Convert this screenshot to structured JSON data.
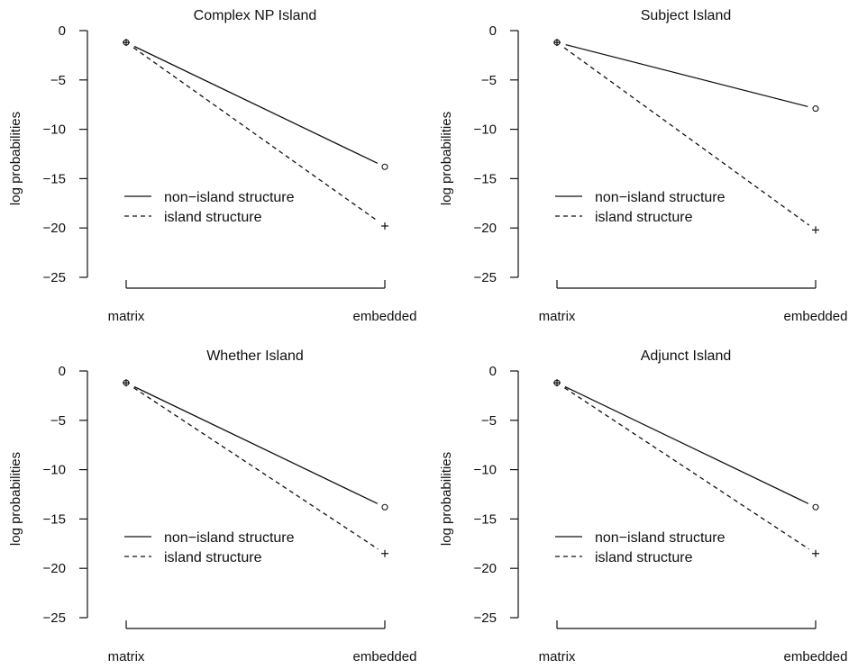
{
  "chart_data": [
    {
      "type": "line",
      "title": "Complex NP Island",
      "ylabel": "log probabilities",
      "xlabel": "",
      "categories": [
        "matrix",
        "embedded"
      ],
      "ylim": [
        -25,
        0
      ],
      "yticks": [
        0,
        -5,
        -10,
        -15,
        -20,
        -25
      ],
      "legend_position": "middle-left",
      "grid": false,
      "series": [
        {
          "name": "non−island structure",
          "style": "solid",
          "marker": "circle",
          "values": [
            -1.2,
            -13.8
          ]
        },
        {
          "name": "island structure",
          "style": "dashed",
          "marker": "plus",
          "values": [
            -1.2,
            -19.8
          ]
        }
      ]
    },
    {
      "type": "line",
      "title": "Subject Island",
      "ylabel": "log probabilities",
      "xlabel": "",
      "categories": [
        "matrix",
        "embedded"
      ],
      "ylim": [
        -25,
        0
      ],
      "yticks": [
        0,
        -5,
        -10,
        -15,
        -20,
        -25
      ],
      "legend_position": "middle-left",
      "grid": false,
      "series": [
        {
          "name": "non−island structure",
          "style": "solid",
          "marker": "circle",
          "values": [
            -1.2,
            -7.9
          ]
        },
        {
          "name": "island structure",
          "style": "dashed",
          "marker": "plus",
          "values": [
            -1.2,
            -20.2
          ]
        }
      ]
    },
    {
      "type": "line",
      "title": "Whether Island",
      "ylabel": "log probabilities",
      "xlabel": "",
      "categories": [
        "matrix",
        "embedded"
      ],
      "ylim": [
        -25,
        0
      ],
      "yticks": [
        0,
        -5,
        -10,
        -15,
        -20,
        -25
      ],
      "legend_position": "middle-left",
      "grid": false,
      "series": [
        {
          "name": "non−island structure",
          "style": "solid",
          "marker": "circle",
          "values": [
            -1.2,
            -13.8
          ]
        },
        {
          "name": "island structure",
          "style": "dashed",
          "marker": "plus",
          "values": [
            -1.2,
            -18.5
          ]
        }
      ]
    },
    {
      "type": "line",
      "title": "Adjunct Island",
      "ylabel": "log probabilities",
      "xlabel": "",
      "categories": [
        "matrix",
        "embedded"
      ],
      "ylim": [
        -25,
        0
      ],
      "yticks": [
        0,
        -5,
        -10,
        -15,
        -20,
        -25
      ],
      "legend_position": "middle-left",
      "grid": false,
      "series": [
        {
          "name": "non−island structure",
          "style": "solid",
          "marker": "circle",
          "values": [
            -1.2,
            -13.8
          ]
        },
        {
          "name": "island structure",
          "style": "dashed",
          "marker": "plus",
          "values": [
            -1.2,
            -18.5
          ]
        }
      ]
    }
  ]
}
